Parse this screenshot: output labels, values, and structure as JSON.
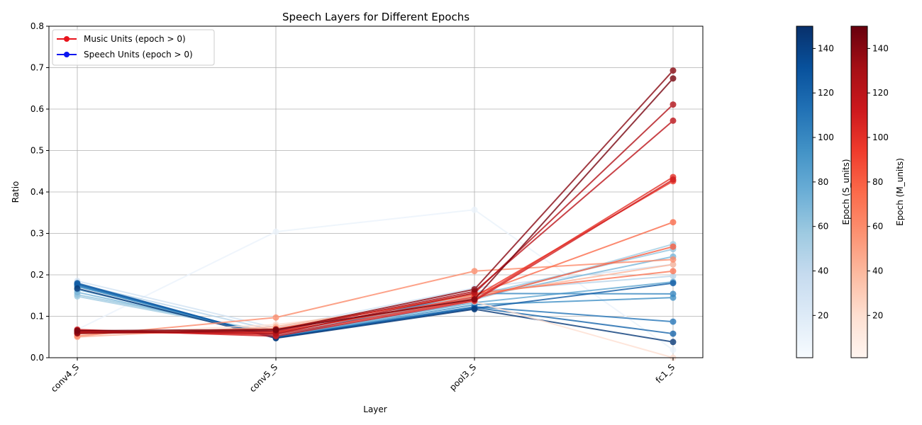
{
  "chart_data": {
    "type": "line",
    "title": "Speech Layers for Different Epochs",
    "xlabel": "Layer",
    "ylabel": "Ratio",
    "categories": [
      "conv4_S",
      "conv5_S",
      "pool3_S",
      "fc1_S"
    ],
    "ylim": [
      0,
      0.8
    ],
    "yticks": [
      0.0,
      0.1,
      0.2,
      0.3,
      0.4,
      0.5,
      0.6,
      0.7,
      0.8
    ],
    "grid": true,
    "legend_position": "top-left",
    "legend": [
      {
        "label": "Music Units (epoch > 0)",
        "color": "#e8141c"
      },
      {
        "label": "Speech Units (epoch > 0)",
        "color": "#0b16f0"
      }
    ],
    "colorbars": [
      {
        "label": "Epoch (S_units)",
        "colormap": "Blues",
        "range": [
          1,
          150
        ],
        "ticks": [
          20,
          40,
          60,
          80,
          100,
          120,
          140
        ]
      },
      {
        "label": "Epoch (M_units)",
        "colormap": "Reds",
        "range": [
          1,
          150
        ],
        "ticks": [
          20,
          40,
          60,
          80,
          100,
          120,
          140
        ]
      }
    ],
    "series": [
      {
        "group": "speech",
        "epoch": 10,
        "values": [
          0.068,
          0.304,
          0.357,
          0.019
        ]
      },
      {
        "group": "speech",
        "epoch": 30,
        "values": [
          0.185,
          0.072,
          0.168,
          0.225
        ]
      },
      {
        "group": "speech",
        "epoch": 45,
        "values": [
          0.178,
          0.065,
          0.16,
          0.197
        ]
      },
      {
        "group": "speech",
        "epoch": 55,
        "values": [
          0.148,
          0.058,
          0.14,
          0.274
        ]
      },
      {
        "group": "speech",
        "epoch": 60,
        "values": [
          0.152,
          0.06,
          0.15,
          0.262
        ]
      },
      {
        "group": "speech",
        "epoch": 70,
        "values": [
          0.158,
          0.055,
          0.145,
          0.244
        ]
      },
      {
        "group": "speech",
        "epoch": 80,
        "values": [
          0.165,
          0.052,
          0.133,
          0.183
        ]
      },
      {
        "group": "speech",
        "epoch": 95,
        "values": [
          0.172,
          0.05,
          0.128,
          0.145
        ]
      },
      {
        "group": "speech",
        "epoch": 100,
        "values": [
          0.174,
          0.05,
          0.155,
          0.154
        ]
      },
      {
        "group": "speech",
        "epoch": 110,
        "values": [
          0.176,
          0.049,
          0.123,
          0.087
        ]
      },
      {
        "group": "speech",
        "epoch": 120,
        "values": [
          0.178,
          0.049,
          0.121,
          0.058
        ]
      },
      {
        "group": "speech",
        "epoch": 125,
        "values": [
          0.18,
          0.048,
          0.119,
          0.18
        ]
      },
      {
        "group": "speech",
        "epoch": 145,
        "values": [
          0.167,
          0.047,
          0.117,
          0.038
        ]
      },
      {
        "group": "music",
        "epoch": 20,
        "values": [
          0.055,
          0.08,
          0.135,
          0.0
        ]
      },
      {
        "group": "music",
        "epoch": 40,
        "values": [
          0.05,
          0.075,
          0.15,
          0.225
        ]
      },
      {
        "group": "music",
        "epoch": 60,
        "values": [
          0.052,
          0.097,
          0.209,
          0.237
        ]
      },
      {
        "group": "music",
        "epoch": 70,
        "values": [
          0.058,
          0.068,
          0.155,
          0.209
        ]
      },
      {
        "group": "music",
        "epoch": 75,
        "values": [
          0.06,
          0.07,
          0.152,
          0.327
        ]
      },
      {
        "group": "music",
        "epoch": 80,
        "values": [
          0.063,
          0.062,
          0.143,
          0.268
        ]
      },
      {
        "group": "music",
        "epoch": 95,
        "values": [
          0.06,
          0.06,
          0.147,
          0.426
        ]
      },
      {
        "group": "music",
        "epoch": 100,
        "values": [
          0.064,
          0.056,
          0.14,
          0.436
        ]
      },
      {
        "group": "music",
        "epoch": 110,
        "values": [
          0.068,
          0.052,
          0.137,
          0.43
        ]
      },
      {
        "group": "music",
        "epoch": 120,
        "values": [
          0.062,
          0.063,
          0.16,
          0.572
        ]
      },
      {
        "group": "music",
        "epoch": 125,
        "values": [
          0.066,
          0.058,
          0.156,
          0.611
        ]
      },
      {
        "group": "music",
        "epoch": 140,
        "values": [
          0.059,
          0.066,
          0.165,
          0.693
        ]
      },
      {
        "group": "music",
        "epoch": 145,
        "values": [
          0.065,
          0.068,
          0.141,
          0.674
        ]
      }
    ]
  }
}
